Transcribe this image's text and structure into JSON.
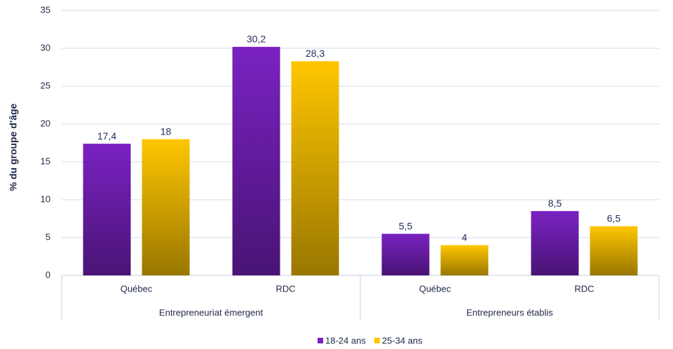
{
  "chart_data": {
    "type": "bar",
    "y_label": "% du groupe d'âge",
    "groups": [
      {
        "name": "Entrepreneuriat émergent",
        "categories": [
          "Québec",
          "RDC"
        ]
      },
      {
        "name": "Entrepreneurs établis",
        "categories": [
          "Québec",
          "RDC"
        ]
      }
    ],
    "series": [
      {
        "name": "18-24 ans",
        "color": "#7a22c2",
        "values": [
          17.4,
          30.2,
          5.5,
          8.5
        ],
        "value_labels": [
          "17,4",
          "30,2",
          "5,5",
          "8,5"
        ]
      },
      {
        "name": "25-34 ans",
        "color": "#ffc600",
        "values": [
          18,
          28.3,
          4,
          6.5
        ],
        "value_labels": [
          "18",
          "28,3",
          "4",
          "6,5"
        ]
      }
    ],
    "ylim": [
      0,
      35
    ],
    "yticks": [
      0,
      5,
      10,
      15,
      20,
      25,
      30,
      35
    ],
    "grid": true,
    "legend": "bottom"
  }
}
